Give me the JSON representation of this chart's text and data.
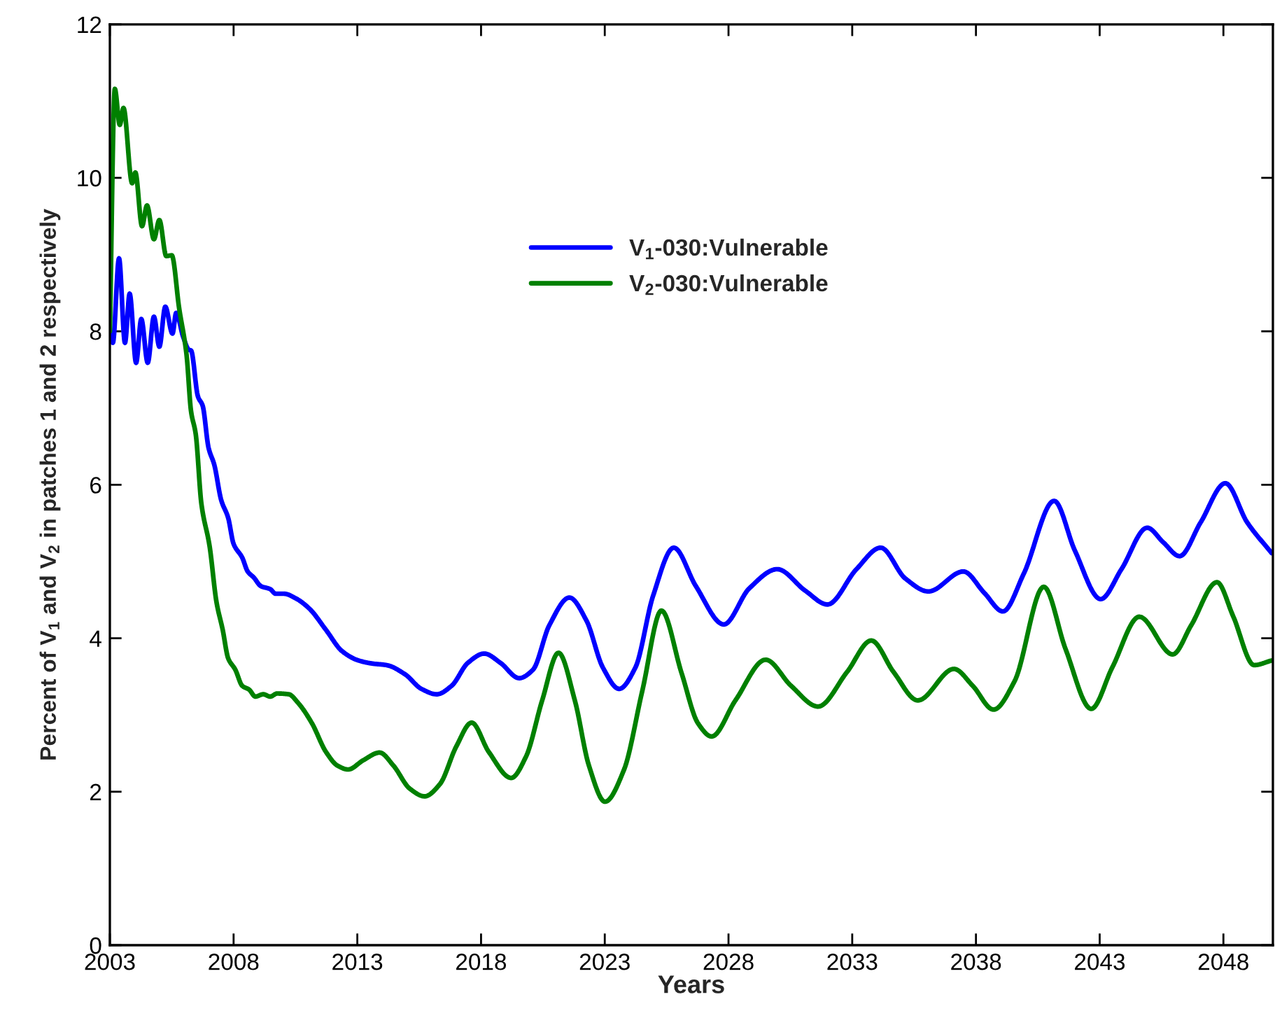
{
  "chart_data": {
    "type": "line",
    "xlabel": "Years",
    "ylabel": "Percent of V$_{1}$ and V$_{2}$ in patches 1 and 2 respectively",
    "xlim": [
      2003,
      2050
    ],
    "xticks": [
      2003,
      2008,
      2013,
      2018,
      2023,
      2028,
      2033,
      2038,
      2043,
      2048
    ],
    "ylim": [
      0,
      12
    ],
    "yticks": [
      0,
      2,
      4,
      6,
      8,
      10,
      12
    ],
    "grid": false,
    "legend": "top",
    "line_style": "solid",
    "series": [
      {
        "name": "V$_{1}$-030:Vulnerable",
        "color": "#0000ff",
        "x": [
          2003.0,
          2003.12,
          2003.37,
          2003.61,
          2003.8,
          2004.06,
          2004.27,
          2004.53,
          2004.78,
          2005.0,
          2005.24,
          2005.53,
          2005.68,
          2005.96,
          2006.19,
          2006.28,
          2006.56,
          2006.75,
          2006.99,
          2007.22,
          2007.5,
          2007.78,
          2008.0,
          2008.35,
          2008.57,
          2008.82,
          2009.1,
          2009.48,
          2009.7,
          2010.04,
          2010.51,
          2011.08,
          2011.73,
          2012.39,
          2013.05,
          2013.61,
          2014.18,
          2014.93,
          2015.59,
          2016.21,
          2016.81,
          2017.47,
          2018.13,
          2018.78,
          2019.54,
          2020.1,
          2020.76,
          2021.57,
          2022.26,
          2022.92,
          2023.58,
          2024.24,
          2024.95,
          2025.79,
          2026.68,
          2027.81,
          2028.84,
          2029.97,
          2031.1,
          2032.0,
          2033.17,
          2034.15,
          2035.14,
          2036.08,
          2037.49,
          2038.34,
          2039.09,
          2039.93,
          2041.16,
          2042.0,
          2043.04,
          2043.88,
          2044.92,
          2045.57,
          2046.23,
          2047.08,
          2048.08,
          2048.96,
          2049.95
        ],
        "values": [
          8.0,
          7.85,
          8.95,
          7.85,
          8.49,
          7.59,
          8.16,
          7.59,
          8.19,
          7.8,
          8.32,
          7.97,
          8.24,
          7.93,
          7.76,
          7.75,
          7.15,
          7.03,
          6.48,
          6.26,
          5.8,
          5.57,
          5.23,
          5.05,
          4.87,
          4.79,
          4.68,
          4.64,
          4.58,
          4.58,
          4.52,
          4.38,
          4.11,
          3.83,
          3.71,
          3.67,
          3.65,
          3.53,
          3.34,
          3.27,
          3.38,
          3.68,
          3.8,
          3.68,
          3.48,
          3.59,
          4.17,
          4.53,
          4.23,
          3.62,
          3.34,
          3.62,
          4.55,
          5.18,
          4.68,
          4.18,
          4.65,
          4.9,
          4.62,
          4.44,
          4.9,
          5.18,
          4.78,
          4.61,
          4.87,
          4.59,
          4.35,
          4.84,
          5.79,
          5.14,
          4.51,
          4.9,
          5.44,
          5.25,
          5.07,
          5.51,
          6.02,
          5.51,
          5.11
        ]
      },
      {
        "name": "V$_{2}$-030:Vulnerable",
        "color": "#008000",
        "x": [
          2003.0,
          2003.2,
          2003.4,
          2003.55,
          2003.9,
          2004.03,
          2004.3,
          2004.5,
          2004.78,
          2005.0,
          2005.28,
          2005.5,
          2005.8,
          2006.1,
          2006.28,
          2006.47,
          2006.7,
          2007.03,
          2007.31,
          2007.56,
          2007.78,
          2008.07,
          2008.35,
          2008.63,
          2008.88,
          2009.2,
          2009.48,
          2009.76,
          2010.23,
          2010.6,
          2011.17,
          2011.73,
          2012.2,
          2012.63,
          2013.24,
          2013.9,
          2014.46,
          2015.12,
          2015.72,
          2016.34,
          2017.0,
          2017.62,
          2018.31,
          2019.22,
          2019.82,
          2020.47,
          2021.13,
          2021.79,
          2022.36,
          2023.01,
          2023.77,
          2024.52,
          2025.29,
          2026.1,
          2026.77,
          2027.32,
          2028.28,
          2029.5,
          2030.53,
          2031.62,
          2032.79,
          2033.77,
          2034.67,
          2035.65,
          2037.11,
          2037.87,
          2038.71,
          2039.56,
          2040.74,
          2041.62,
          2042.66,
          2043.51,
          2044.6,
          2045.95,
          2046.7,
          2047.74,
          2048.39,
          2049.24,
          2049.95
        ],
        "values": [
          8.0,
          11.16,
          10.69,
          10.91,
          9.93,
          10.07,
          9.37,
          9.64,
          9.2,
          9.45,
          8.98,
          8.99,
          8.3,
          7.69,
          6.96,
          6.66,
          5.75,
          5.2,
          4.47,
          4.11,
          3.74,
          3.59,
          3.38,
          3.33,
          3.24,
          3.27,
          3.24,
          3.28,
          3.27,
          3.16,
          2.89,
          2.52,
          2.34,
          2.29,
          2.41,
          2.51,
          2.34,
          2.04,
          1.94,
          2.1,
          2.59,
          2.9,
          2.52,
          2.18,
          2.46,
          3.19,
          3.81,
          3.19,
          2.34,
          1.87,
          2.28,
          3.32,
          4.36,
          3.55,
          2.89,
          2.72,
          3.19,
          3.72,
          3.38,
          3.11,
          3.56,
          3.97,
          3.56,
          3.19,
          3.6,
          3.38,
          3.07,
          3.44,
          4.67,
          3.86,
          3.08,
          3.62,
          4.28,
          3.79,
          4.17,
          4.73,
          4.29,
          3.65,
          3.71
        ]
      }
    ]
  }
}
